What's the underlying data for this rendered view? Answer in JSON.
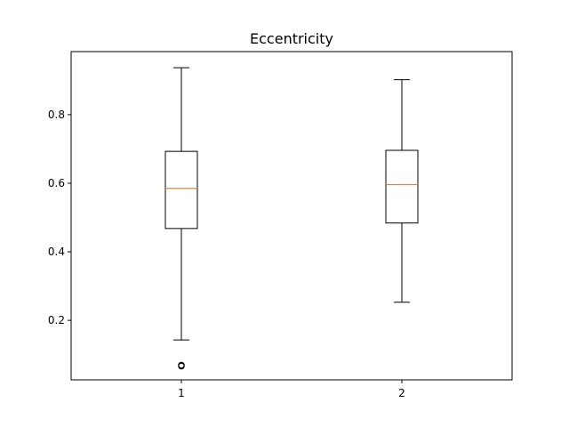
{
  "chart_data": {
    "type": "box",
    "title": "Eccentricity",
    "xlabel": "",
    "ylabel": "",
    "categories": [
      "1",
      "2"
    ],
    "ylim": [
      0.0265,
      0.984
    ],
    "yticks": [
      "0.2",
      "0.4",
      "0.6",
      "0.8"
    ],
    "ytick_values": [
      0.2,
      0.4,
      0.6,
      0.8
    ],
    "boxes": [
      {
        "label": "1",
        "whisker_low": 0.143,
        "q1": 0.468,
        "median": 0.585,
        "q3": 0.693,
        "whisker_high": 0.937,
        "outliers": [
          0.0695,
          0.0665,
          0.0675
        ]
      },
      {
        "label": "2",
        "whisker_low": 0.253,
        "q1": 0.484,
        "median": 0.596,
        "q3": 0.696,
        "whisker_high": 0.902,
        "outliers": []
      }
    ],
    "grid": false,
    "colors": {
      "box": "#000000",
      "median": "#ff7f0e",
      "outlier": "#000000"
    }
  }
}
